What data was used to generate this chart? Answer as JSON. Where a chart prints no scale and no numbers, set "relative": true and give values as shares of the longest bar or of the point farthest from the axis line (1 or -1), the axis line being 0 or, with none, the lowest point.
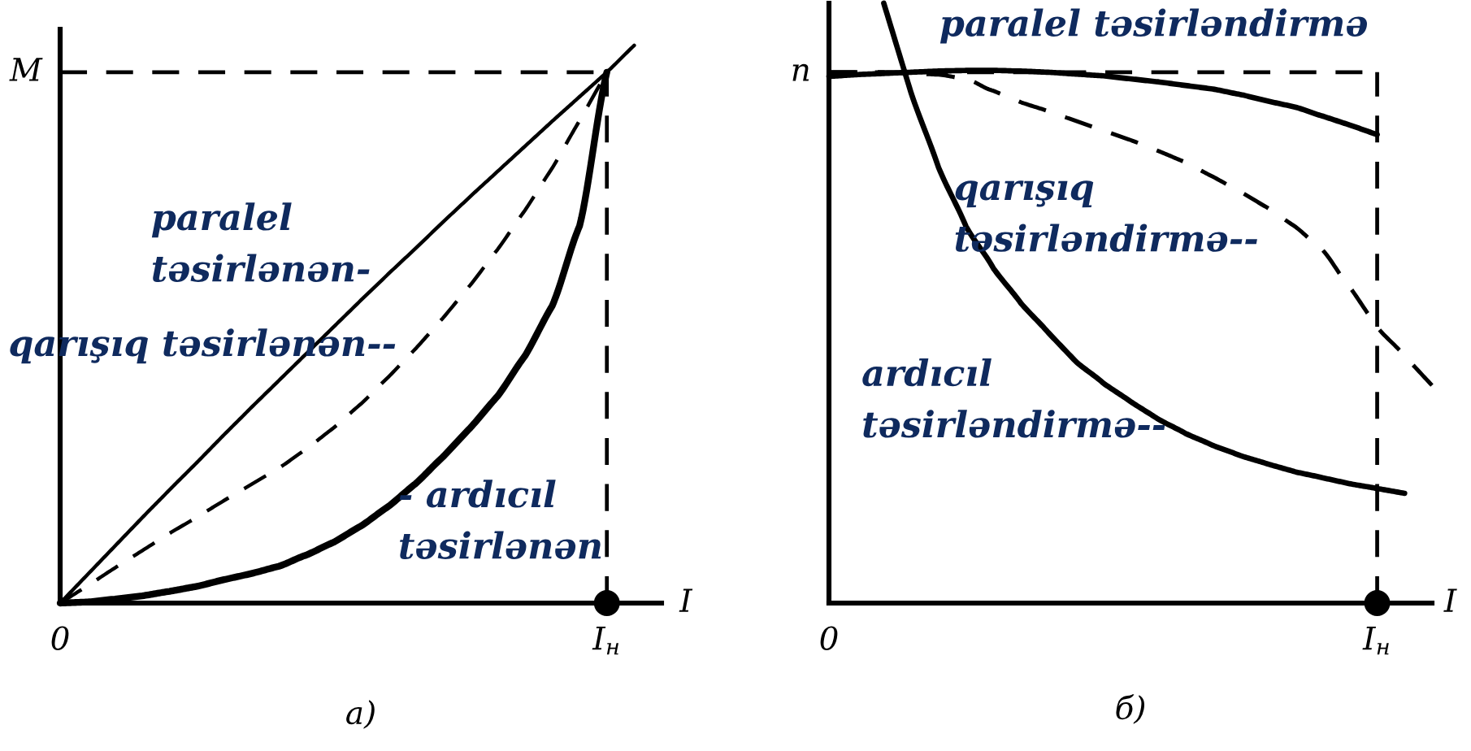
{
  "chart_data": [
    {
      "type": "line",
      "relative": true,
      "title": "а)",
      "xlabel": "I",
      "categories": [
        "0",
        null,
        null,
        null,
        null,
        null,
        null,
        null,
        null,
        null,
        null,
        null,
        null,
        null,
        null,
        null,
        null,
        null,
        null,
        null,
        "I$_{н}$",
        null,
        null
      ],
      "ref_lines": [
        {
          "axis": "y",
          "value": 0.952,
          "label": "M",
          "color": "#000000",
          "line_style": "dashed"
        },
        {
          "axis": "x",
          "value": "I$_{н}$",
          "color": "#000000",
          "line_style": "dashed"
        }
      ],
      "series": [
        {
          "name": "paralel təsirlənən-",
          "color": "#000000",
          "line_style": "solid",
          "values": [
            0,
            0.051,
            0.102,
            0.153,
            0.203,
            0.252,
            0.302,
            0.351,
            0.399,
            0.447,
            0.495,
            0.543,
            0.59,
            0.636,
            0.683,
            0.729,
            0.774,
            0.819,
            0.864,
            0.908,
            0.952,
            1,
            null
          ]
        },
        {
          "name": "qarışıq təsirlənən--",
          "color": "#000000",
          "line_style": "dashed",
          "values": [
            0,
            0.031,
            0.063,
            0.094,
            0.125,
            0.154,
            0.184,
            0.213,
            0.242,
            0.276,
            0.314,
            0.357,
            0.405,
            0.456,
            0.511,
            0.57,
            0.634,
            0.704,
            0.78,
            0.865,
            0.952,
            null,
            null
          ]
        },
        {
          "name": "- ardıcıl təsirlənən",
          "color": "#000000",
          "line_style": "solid",
          "values": [
            0,
            0.002,
            0.007,
            0.013,
            0.021,
            0.03,
            0.042,
            0.053,
            0.066,
            0.086,
            0.109,
            0.138,
            0.173,
            0.214,
            0.262,
            0.314,
            0.371,
            0.443,
            0.533,
            0.676,
            0.952,
            null,
            null
          ]
        },
        {
          "type": "scatter",
          "color": "#000000",
          "marker": "circle",
          "x": [
            "I$_{н}$"
          ],
          "values": [
            0
          ]
        }
      ]
    },
    {
      "type": "line",
      "relative": true,
      "title": "б)",
      "xlabel": "I",
      "categories": [
        "0",
        null,
        null,
        null,
        null,
        null,
        null,
        null,
        null,
        null,
        null,
        null,
        null,
        null,
        null,
        null,
        null,
        null,
        null,
        null,
        "I$_{н}$",
        null,
        null
      ],
      "ref_lines": [
        {
          "axis": "y",
          "value": 0.885,
          "label": "n",
          "color": "#000000",
          "line_style": "dashed"
        },
        {
          "axis": "x",
          "value": "I$_{н}$",
          "color": "#000000",
          "line_style": "dashed"
        }
      ],
      "series": [
        {
          "name": "paralel təsirləndirmə",
          "color": "#000000",
          "line_style": "solid",
          "values": [
            0.878,
            0.881,
            0.883,
            0.885,
            0.887,
            0.888,
            0.888,
            0.887,
            0.885,
            0.882,
            0.879,
            0.874,
            0.869,
            0.863,
            0.857,
            0.848,
            0.837,
            0.827,
            0.812,
            0.797,
            0.781,
            null,
            null
          ]
        },
        {
          "name": "qarışıq təsirləndirmə--",
          "color": "#000000",
          "line_style": "dashed",
          "values": [
            0.885,
            0.885,
            0.885,
            0.883,
            0.881,
            0.874,
            0.854,
            0.835,
            0.82,
            0.804,
            0.788,
            0.772,
            0.754,
            0.735,
            0.711,
            0.686,
            0.659,
            0.628,
            0.589,
            0.527,
            0.46,
            0.412,
            0.363
          ]
        },
        {
          "name": "ardıcıl təsirləndirmə--",
          "color": "#000000",
          "line_style": "solid",
          "values": [
            null,
            null,
            1,
            0.85,
            0.726,
            0.628,
            0.558,
            0.5,
            0.451,
            0.403,
            0.367,
            0.336,
            0.307,
            0.283,
            0.263,
            0.246,
            0.232,
            0.219,
            0.209,
            0.199,
            0.191,
            0.183,
            null
          ]
        },
        {
          "type": "scatter",
          "color": "#000000",
          "marker": "circle",
          "x": [
            "I$_{н}$"
          ],
          "values": [
            0
          ]
        }
      ]
    }
  ]
}
